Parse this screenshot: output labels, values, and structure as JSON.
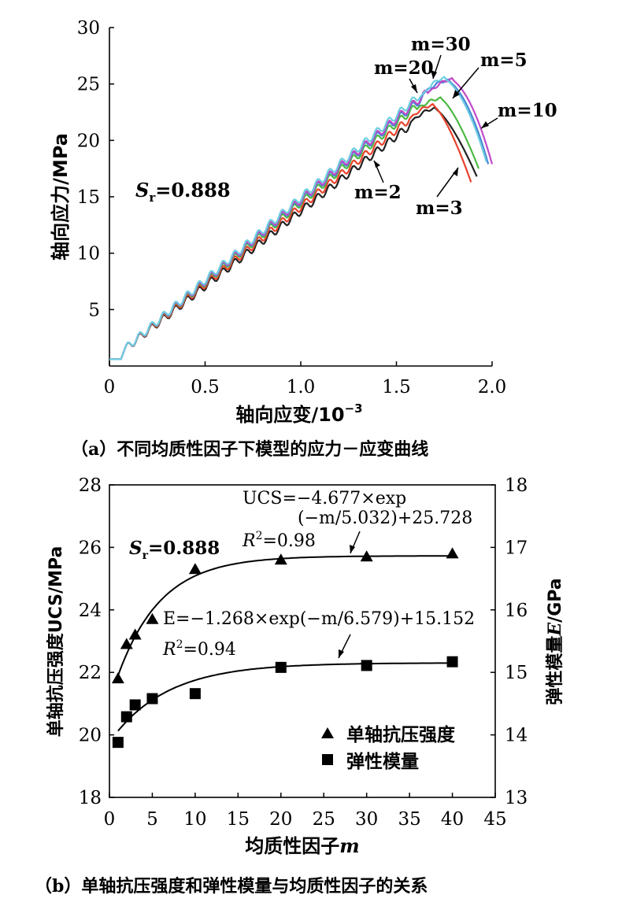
{
  "chart_data": [
    {
      "type": "line",
      "caption": "（a）不同均质性因子下模型的应力－应变曲线",
      "xlabel_main": "轴向应变/10",
      "xlabel_exp": "−3",
      "ylabel": "轴向应力/MPa",
      "xlim": [
        0,
        2.0
      ],
      "ylim": [
        0,
        30
      ],
      "xticks": [
        "0",
        "0.5",
        "1.0",
        "1.5",
        "2.0"
      ],
      "yticks": [
        "5",
        "10",
        "15",
        "20",
        "25",
        "30"
      ],
      "xtick_values": [
        0,
        0.5,
        1.0,
        1.5,
        2.0
      ],
      "ytick_values": [
        5,
        10,
        15,
        20,
        25,
        30
      ],
      "annotation": {
        "symbol": "S",
        "sub": "r",
        "value": "=0.888"
      },
      "series": [
        {
          "name": "m=2",
          "color": "#222222",
          "slope": 13.3,
          "peak_x": 1.7,
          "peak_y": 22.8,
          "end_x": 1.92,
          "end_y": 16.8,
          "fall": "steep"
        },
        {
          "name": "m=3",
          "color": "#e8432c",
          "slope": 13.7,
          "peak_x": 1.69,
          "peak_y": 23.1,
          "end_x": 1.89,
          "end_y": 16.3,
          "fall": "steep"
        },
        {
          "name": "m=5",
          "color": "#4cb944",
          "slope": 14.1,
          "peak_x": 1.73,
          "peak_y": 23.7,
          "end_x": 1.93,
          "end_y": 17.5,
          "fall": "steep"
        },
        {
          "name": "m=10",
          "color": "#4a82d6",
          "slope": 14.3,
          "peak_x": 1.77,
          "peak_y": 25.3,
          "end_x": 1.98,
          "end_y": 17.9,
          "fall": "round"
        },
        {
          "name": "m=20",
          "color": "#c04ac8",
          "slope": 14.4,
          "peak_x": 1.79,
          "peak_y": 25.4,
          "end_x": 2.0,
          "end_y": 17.9,
          "fall": "round"
        },
        {
          "name": "m=30",
          "color": "#6ecfe0",
          "slope": 14.6,
          "peak_x": 1.75,
          "peak_y": 25.5,
          "end_x": 1.97,
          "end_y": 18.1,
          "fall": "round"
        }
      ],
      "labels": [
        "m=30",
        "m=5",
        "m=20",
        "m=10",
        "m=2",
        "m=3"
      ]
    },
    {
      "type": "scatter",
      "caption": "（b）单轴抗压强度和弹性模量与均质性因子的关系",
      "xlabel_main": "均质性因子",
      "xlabel_var": "m",
      "ylabel_left": "单轴抗压强度UCS/MPa",
      "ylabel_right_pre": "弹性模量",
      "ylabel_right_var": "E",
      "ylabel_right_post": "/GPa",
      "xlim": [
        0,
        45
      ],
      "ylim_left": [
        18,
        28
      ],
      "ylim_right": [
        13,
        18
      ],
      "xticks": [
        "0",
        "5",
        "10",
        "15",
        "20",
        "25",
        "30",
        "35",
        "40",
        "45"
      ],
      "yticks_left": [
        "18",
        "20",
        "22",
        "24",
        "26",
        "28"
      ],
      "yticks_right": [
        "13",
        "14",
        "15",
        "16",
        "17",
        "18"
      ],
      "xtick_values": [
        0,
        5,
        10,
        15,
        20,
        25,
        30,
        35,
        40,
        45
      ],
      "ytick_left_values": [
        18,
        20,
        22,
        24,
        26,
        28
      ],
      "ytick_right_values": [
        13,
        14,
        15,
        16,
        17,
        18
      ],
      "series": [
        {
          "name": "单轴抗压强度",
          "marker": "triangle",
          "axis": "left",
          "x": [
            1,
            2,
            3,
            5,
            10,
            20,
            30,
            40
          ],
          "y": [
            21.8,
            22.9,
            23.2,
            23.7,
            25.3,
            25.6,
            25.7,
            25.8
          ],
          "fit": {
            "a": -4.677,
            "b": 5.032,
            "c": 25.728
          }
        },
        {
          "name": "弹性模量",
          "marker": "square",
          "axis": "right",
          "x": [
            1,
            2,
            3,
            5,
            10,
            20,
            30,
            40
          ],
          "y": [
            13.88,
            14.29,
            14.48,
            14.58,
            14.66,
            15.08,
            15.11,
            15.17
          ],
          "fit": {
            "a": -1.268,
            "b": 6.579,
            "c": 15.152
          }
        }
      ],
      "sr_annotation": {
        "symbol": "S",
        "sub": "r",
        "value": "=0.888"
      },
      "ucs_eq_line1": "UCS=−4.677×exp",
      "ucs_eq_line2": "(−m/5.032)+25.728",
      "ucs_r2_value": "=0.98",
      "e_eq": "E=−1.268×exp(−m/6.579)+15.152",
      "e_r2_value": "=0.94",
      "legend": [
        "单轴抗压强度",
        "弹性模量"
      ]
    }
  ]
}
